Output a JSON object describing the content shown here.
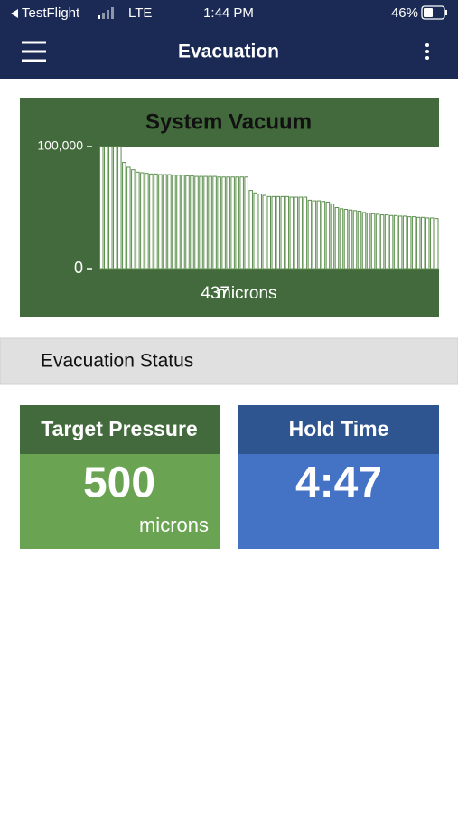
{
  "status_bar": {
    "app": "TestFlight",
    "network": "LTE",
    "time": "1:44 PM",
    "battery": "46%"
  },
  "nav": {
    "title": "Evacuation"
  },
  "chart_data": {
    "type": "bar",
    "title": "System Vacuum",
    "ylim": [
      0,
      100000
    ],
    "yticks": [
      {
        "value": 100000,
        "label": "100,000"
      },
      0
    ],
    "color": "#ffffff",
    "edge_color": "#5c8f4d",
    "values": [
      100000,
      100000,
      100000,
      100000,
      100000,
      87000,
      83000,
      81000,
      79000,
      78500,
      78000,
      77500,
      77500,
      77000,
      77000,
      77000,
      76500,
      76500,
      76500,
      76000,
      76000,
      75500,
      75500,
      75500,
      75500,
      75500,
      75000,
      75000,
      75000,
      75000,
      75000,
      75000,
      75000,
      64000,
      62000,
      61000,
      60000,
      59000,
      59000,
      59000,
      59000,
      59000,
      58500,
      58500,
      58500,
      58500,
      56000,
      55500,
      55500,
      55000,
      54500,
      53000,
      50000,
      49000,
      48500,
      48000,
      47500,
      47000,
      46000,
      45500,
      45000,
      44500,
      44000,
      44000,
      43500,
      43500,
      43000,
      43000,
      42500,
      42500,
      42000,
      42000,
      41500,
      41500,
      41000
    ],
    "reading": "437",
    "reading_unit": "microns"
  },
  "section": {
    "title": "Evacuation Status"
  },
  "cards": [
    {
      "label": "Target Pressure",
      "value": "500",
      "unit": "microns"
    },
    {
      "label": "Hold Time",
      "value": "4:47"
    }
  ]
}
